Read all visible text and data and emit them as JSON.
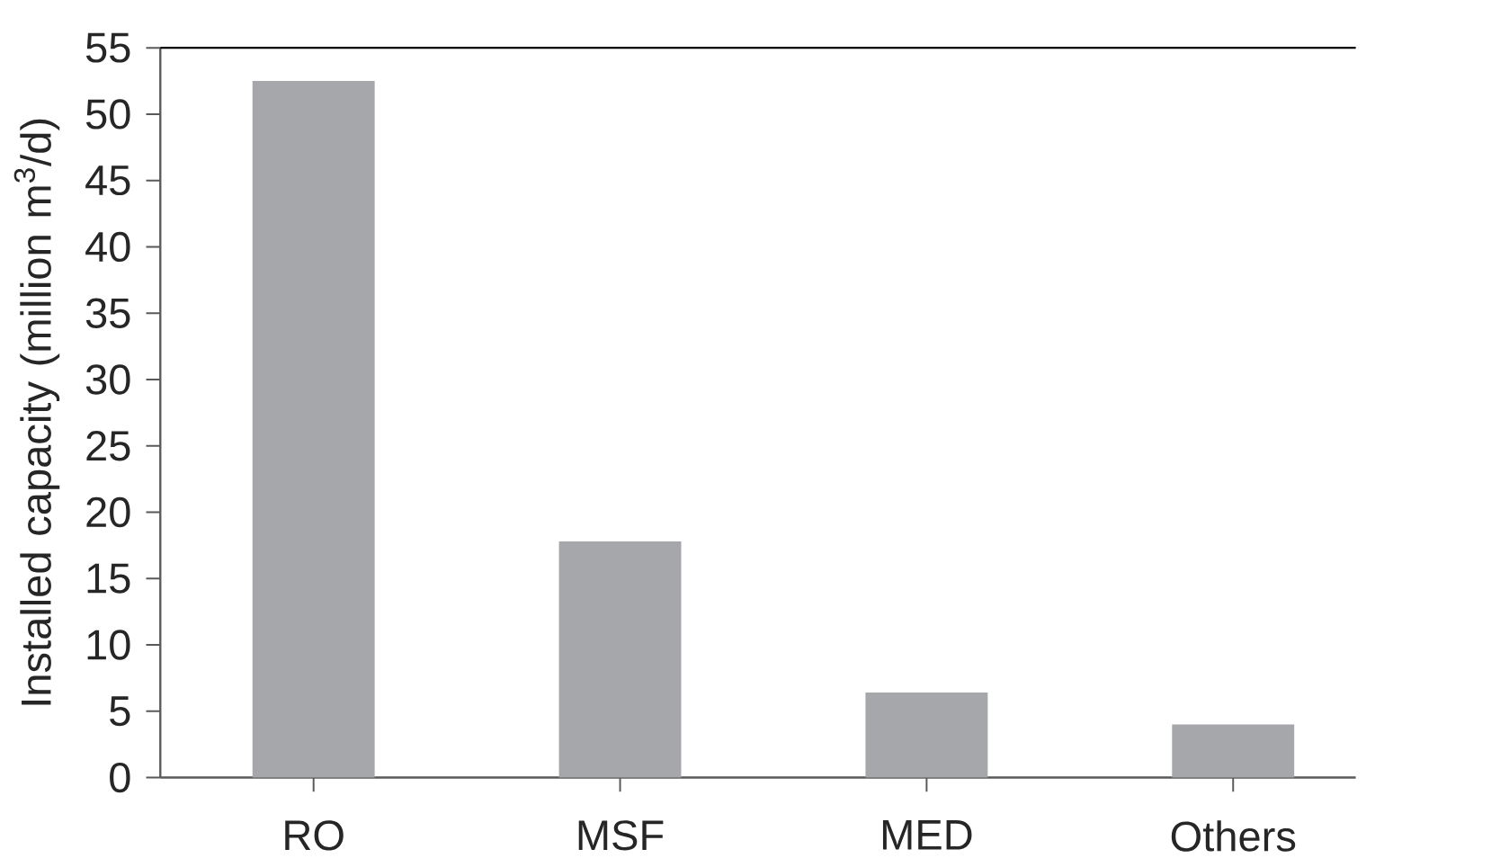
{
  "chart_data": {
    "type": "bar",
    "ylabel": "Installed capacity (million m$^{3}$/d)",
    "categories": [
      "RO",
      "MSF",
      "MED",
      "Others"
    ],
    "values": [
      52.5,
      17.8,
      6.4,
      4.0
    ],
    "color": "#a6a7aa",
    "ylim": [
      0,
      55
    ],
    "yticks": [
      0,
      5,
      10,
      15,
      20,
      25,
      30,
      35,
      40,
      45,
      50,
      55
    ]
  }
}
